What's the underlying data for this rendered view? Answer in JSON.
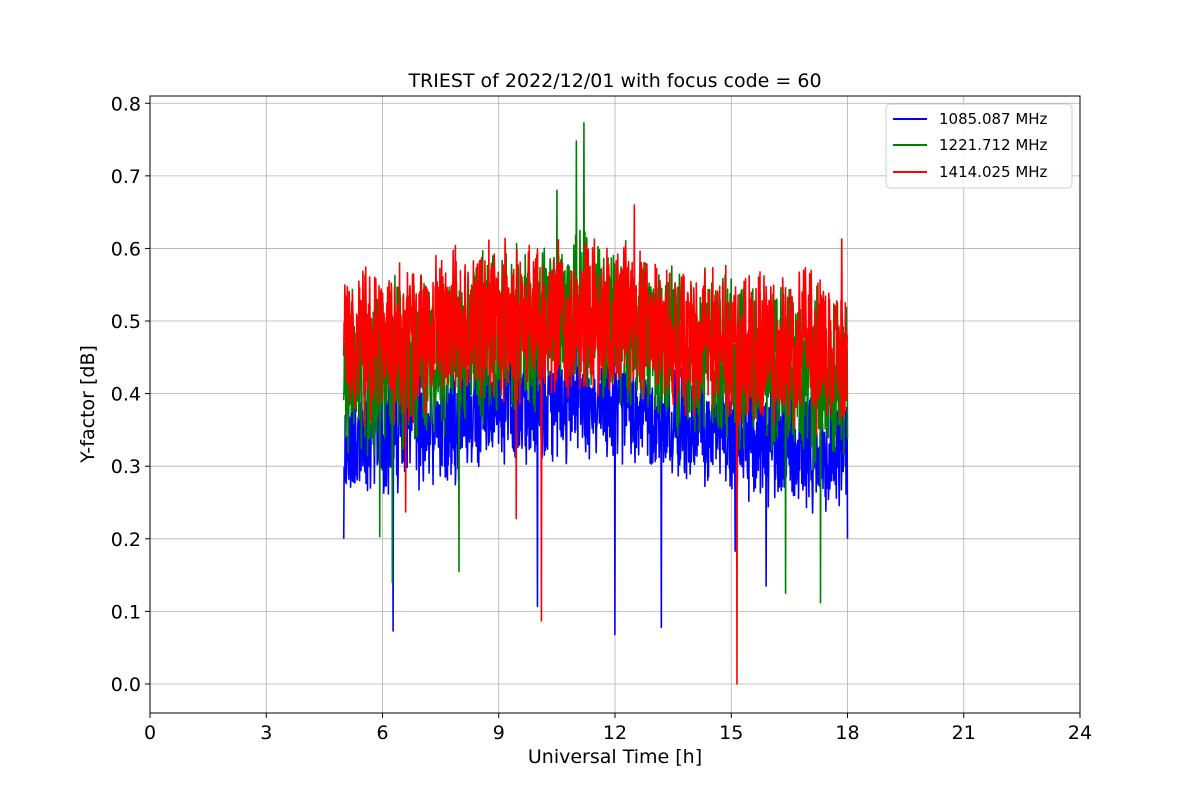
{
  "chart_data": {
    "type": "line",
    "title": "TRIEST of 2022/12/01 with focus code = 60",
    "xlabel": "Universal Time [h]",
    "ylabel": "Y-factor [dB]",
    "xlim": [
      0,
      24
    ],
    "ylim": [
      -0.04,
      0.81
    ],
    "xticks": [
      0,
      3,
      6,
      9,
      12,
      15,
      18,
      21,
      24
    ],
    "yticks": [
      0.0,
      0.1,
      0.2,
      0.3,
      0.4,
      0.5,
      0.6,
      0.7,
      0.8
    ],
    "xtick_labels": [
      "0",
      "3",
      "6",
      "9",
      "12",
      "15",
      "18",
      "21",
      "24"
    ],
    "ytick_labels": [
      "0.0",
      "0.1",
      "0.2",
      "0.3",
      "0.4",
      "0.5",
      "0.6",
      "0.7",
      "0.8"
    ],
    "grid": true,
    "legend_position": "top-right",
    "series": [
      {
        "name": "1085.087 MHz",
        "color": "#0000ff",
        "t_start": 5.0,
        "t_end": 18.0,
        "baseline": [
          [
            5.0,
            0.33
          ],
          [
            6.0,
            0.34
          ],
          [
            7.0,
            0.35
          ],
          [
            8.0,
            0.36
          ],
          [
            9.0,
            0.38
          ],
          [
            10.0,
            0.38
          ],
          [
            11.0,
            0.39
          ],
          [
            12.0,
            0.38
          ],
          [
            13.0,
            0.36
          ],
          [
            14.0,
            0.36
          ],
          [
            15.0,
            0.34
          ],
          [
            16.0,
            0.33
          ],
          [
            17.0,
            0.32
          ],
          [
            18.0,
            0.32
          ]
        ],
        "spread": 0.09,
        "spikes": [
          [
            5.0,
            0.2
          ],
          [
            6.27,
            0.073
          ],
          [
            10.0,
            0.107
          ],
          [
            12.0,
            0.068
          ],
          [
            13.2,
            0.078
          ],
          [
            15.1,
            0.183
          ],
          [
            15.9,
            0.135
          ],
          [
            18.0,
            0.2
          ]
        ]
      },
      {
        "name": "1221.712 MHz",
        "color": "#008000",
        "t_start": 5.0,
        "t_end": 18.0,
        "baseline": [
          [
            5.0,
            0.42
          ],
          [
            6.0,
            0.43
          ],
          [
            7.0,
            0.45
          ],
          [
            8.0,
            0.46
          ],
          [
            9.0,
            0.48
          ],
          [
            10.0,
            0.49
          ],
          [
            11.0,
            0.52
          ],
          [
            12.0,
            0.5
          ],
          [
            13.0,
            0.47
          ],
          [
            14.0,
            0.46
          ],
          [
            15.0,
            0.44
          ],
          [
            16.0,
            0.43
          ],
          [
            17.0,
            0.42
          ],
          [
            18.0,
            0.42
          ]
        ],
        "spread": 0.13,
        "spikes": [
          [
            5.93,
            0.203
          ],
          [
            6.25,
            0.14
          ],
          [
            7.97,
            0.155
          ],
          [
            11.2,
            0.773
          ],
          [
            11.0,
            0.748
          ],
          [
            10.5,
            0.68
          ],
          [
            16.4,
            0.125
          ],
          [
            17.3,
            0.112
          ]
        ]
      },
      {
        "name": "1414.025 MHz",
        "color": "#ff0000",
        "t_start": 5.0,
        "t_end": 18.0,
        "baseline": [
          [
            5.0,
            0.47
          ],
          [
            6.0,
            0.47
          ],
          [
            7.0,
            0.48
          ],
          [
            8.0,
            0.49
          ],
          [
            9.0,
            0.5
          ],
          [
            10.0,
            0.5
          ],
          [
            11.0,
            0.51
          ],
          [
            12.0,
            0.5
          ],
          [
            13.0,
            0.49
          ],
          [
            14.0,
            0.48
          ],
          [
            15.0,
            0.46
          ],
          [
            16.0,
            0.46
          ],
          [
            17.0,
            0.46
          ],
          [
            18.0,
            0.45
          ]
        ],
        "spread": 0.12,
        "spikes": [
          [
            9.45,
            0.228
          ],
          [
            10.1,
            0.087
          ],
          [
            15.15,
            0.0
          ],
          [
            6.6,
            0.237
          ],
          [
            12.5,
            0.66
          ],
          [
            17.85,
            0.613
          ]
        ]
      }
    ]
  }
}
